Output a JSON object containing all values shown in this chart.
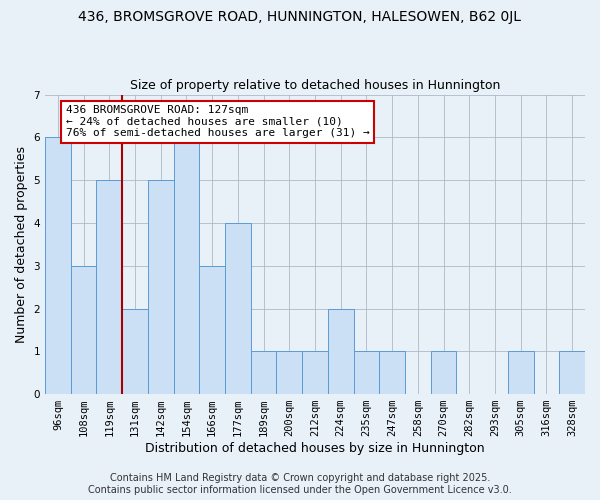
{
  "title": "436, BROMSGROVE ROAD, HUNNINGTON, HALESOWEN, B62 0JL",
  "subtitle": "Size of property relative to detached houses in Hunnington",
  "xlabel": "Distribution of detached houses by size in Hunnington",
  "ylabel": "Number of detached properties",
  "categories": [
    "96sqm",
    "108sqm",
    "119sqm",
    "131sqm",
    "142sqm",
    "154sqm",
    "166sqm",
    "177sqm",
    "189sqm",
    "200sqm",
    "212sqm",
    "224sqm",
    "235sqm",
    "247sqm",
    "258sqm",
    "270sqm",
    "282sqm",
    "293sqm",
    "305sqm",
    "316sqm",
    "328sqm"
  ],
  "values": [
    6,
    3,
    5,
    2,
    5,
    6,
    3,
    4,
    1,
    1,
    1,
    2,
    1,
    1,
    0,
    1,
    0,
    0,
    1,
    0,
    1
  ],
  "ylim": [
    0,
    7
  ],
  "yticks": [
    0,
    1,
    2,
    3,
    4,
    5,
    6,
    7
  ],
  "bar_color": "#cce0f5",
  "bar_edge_color": "#5b9bd5",
  "background_color": "#e8f0f8",
  "red_line_index": 3,
  "annotation_text": "436 BROMSGROVE ROAD: 127sqm\n← 24% of detached houses are smaller (10)\n76% of semi-detached houses are larger (31) →",
  "annotation_box_color": "white",
  "annotation_box_edge_color": "#cc0000",
  "red_line_color": "#aa0000",
  "title_fontsize": 10,
  "subtitle_fontsize": 9,
  "axis_label_fontsize": 9,
  "tick_fontsize": 7.5,
  "annotation_fontsize": 8,
  "footer_text": "Contains HM Land Registry data © Crown copyright and database right 2025.\nContains public sector information licensed under the Open Government Licence v3.0.",
  "footer_fontsize": 7
}
